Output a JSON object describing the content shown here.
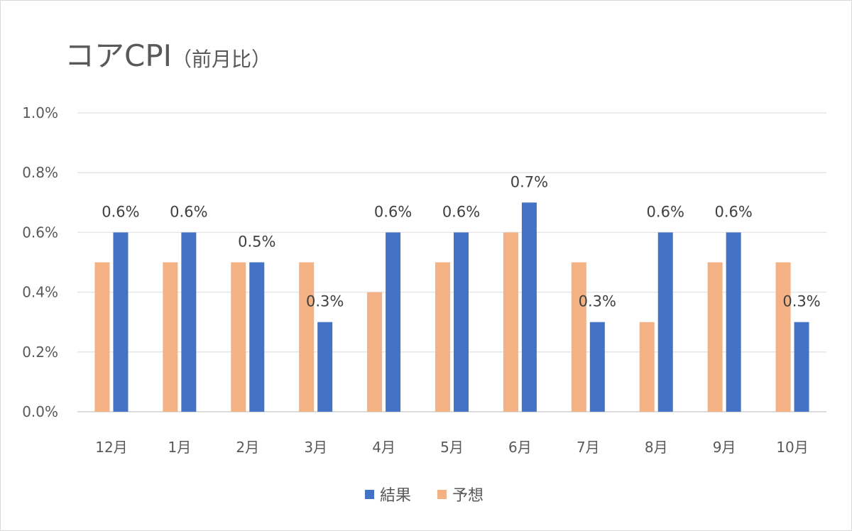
{
  "chart_data": {
    "type": "bar",
    "title": "コアCPI",
    "title_suffix": "（前月比）",
    "categories": [
      "12月",
      "1月",
      "2月",
      "3月",
      "4月",
      "5月",
      "6月",
      "7月",
      "8月",
      "9月",
      "10月"
    ],
    "series": [
      {
        "name": "予想",
        "color": "#F4B183",
        "values": [
          0.5,
          0.5,
          0.5,
          0.5,
          0.4,
          0.5,
          0.6,
          0.5,
          0.3,
          0.5,
          0.5
        ]
      },
      {
        "name": "結果",
        "color": "#4472C4",
        "values": [
          0.6,
          0.6,
          0.5,
          0.3,
          0.6,
          0.6,
          0.7,
          0.3,
          0.6,
          0.6,
          0.3
        ],
        "data_labels": [
          "0.6%",
          "0.6%",
          "0.5%",
          "0.3%",
          "0.6%",
          "0.6%",
          "0.7%",
          "0.3%",
          "0.6%",
          "0.6%",
          "0.3%"
        ]
      }
    ],
    "ylim": [
      0,
      1.0
    ],
    "yticks": [
      0.0,
      0.2,
      0.4,
      0.6,
      0.8,
      1.0
    ],
    "ytick_labels": [
      "0.0%",
      "0.2%",
      "0.4%",
      "0.6%",
      "0.8%",
      "1.0%"
    ],
    "grid": true,
    "legend_position": "bottom",
    "legend_order": [
      "結果",
      "予想"
    ]
  }
}
